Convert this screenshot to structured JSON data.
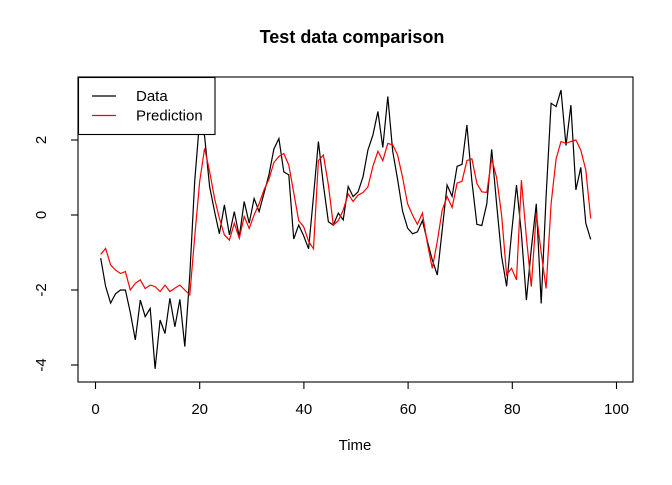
{
  "chart_data": {
    "type": "line",
    "title": "Test data comparison",
    "xlabel": "Time",
    "ylabel": "",
    "x_ticks": [
      0,
      20,
      40,
      60,
      80,
      100
    ],
    "y_ticks": [
      -4,
      -2,
      0,
      2
    ],
    "xlim": [
      -3,
      104
    ],
    "ylim": [
      -4.4,
      3.7
    ],
    "grid": false,
    "background": "#FFFFFF",
    "axis_color": "#000000",
    "legend": {
      "position": "topleft",
      "entries": [
        {
          "label": "Data",
          "color": "#000000"
        },
        {
          "label": "Prediction",
          "color": "#FF0000"
        }
      ]
    },
    "x_start": 1,
    "series": [
      {
        "name": "Data",
        "color": "#000000",
        "values": [
          -1.15,
          -1.9,
          -2.35,
          -2.1,
          -2.0,
          -2.0,
          -2.6,
          -3.33,
          -2.27,
          -2.71,
          -2.49,
          -4.1,
          -2.8,
          -3.16,
          -2.22,
          -2.98,
          -2.25,
          -3.51,
          -1.6,
          0.9,
          2.55,
          2.1,
          0.76,
          0.1,
          -0.5,
          0.27,
          -0.53,
          0.09,
          -0.58,
          0.36,
          -0.22,
          0.44,
          0.09,
          0.58,
          1.07,
          1.76,
          2.04,
          1.15,
          1.07,
          -0.64,
          -0.27,
          -0.55,
          -0.9,
          0.5,
          1.96,
          0.8,
          -0.18,
          -0.27,
          0.05,
          -0.13,
          0.76,
          0.49,
          0.62,
          1.02,
          1.73,
          2.13,
          2.76,
          1.8,
          3.16,
          1.7,
          0.95,
          0.1,
          -0.35,
          -0.5,
          -0.45,
          -0.15,
          -0.7,
          -1.2,
          -1.6,
          -0.4,
          0.8,
          0.5,
          1.3,
          1.35,
          2.4,
          0.9,
          -0.25,
          -0.28,
          0.3,
          1.75,
          0.3,
          -1.1,
          -1.9,
          -0.5,
          0.8,
          -0.5,
          -2.27,
          -0.9,
          0.3,
          -2.36,
          0.5,
          2.98,
          2.89,
          3.33,
          1.85,
          2.93,
          0.67,
          1.27,
          -0.22,
          -0.65
        ]
      },
      {
        "name": "Prediction",
        "color": "#FF0000",
        "values": [
          -1.05,
          -0.89,
          -1.33,
          -1.47,
          -1.56,
          -1.51,
          -2.0,
          -1.82,
          -1.73,
          -1.96,
          -1.87,
          -1.91,
          -2.04,
          -1.87,
          -2.04,
          -1.95,
          -1.87,
          -2.0,
          -2.13,
          -0.58,
          0.9,
          1.78,
          1.16,
          0.45,
          -0.09,
          -0.53,
          -0.67,
          -0.22,
          -0.62,
          -0.04,
          -0.36,
          0.0,
          0.3,
          0.67,
          0.95,
          1.4,
          1.56,
          1.64,
          1.33,
          0.6,
          -0.15,
          -0.31,
          -0.7,
          -0.9,
          1.45,
          1.6,
          0.8,
          -0.27,
          -0.15,
          0.13,
          0.56,
          0.36,
          0.53,
          0.6,
          0.75,
          1.3,
          1.7,
          1.45,
          1.91,
          1.87,
          1.6,
          1.0,
          0.3,
          0.0,
          -0.25,
          0.05,
          -0.76,
          -1.42,
          -0.7,
          0.13,
          0.49,
          0.2,
          0.85,
          0.9,
          1.45,
          1.5,
          0.84,
          0.62,
          0.6,
          1.5,
          1.0,
          0.0,
          -1.6,
          -1.42,
          -1.73,
          0.93,
          -0.6,
          -1.91,
          0.04,
          -1.0,
          -1.96,
          0.3,
          1.5,
          1.96,
          1.91,
          1.96,
          2.0,
          1.73,
          1.2,
          -0.09
        ]
      }
    ]
  }
}
